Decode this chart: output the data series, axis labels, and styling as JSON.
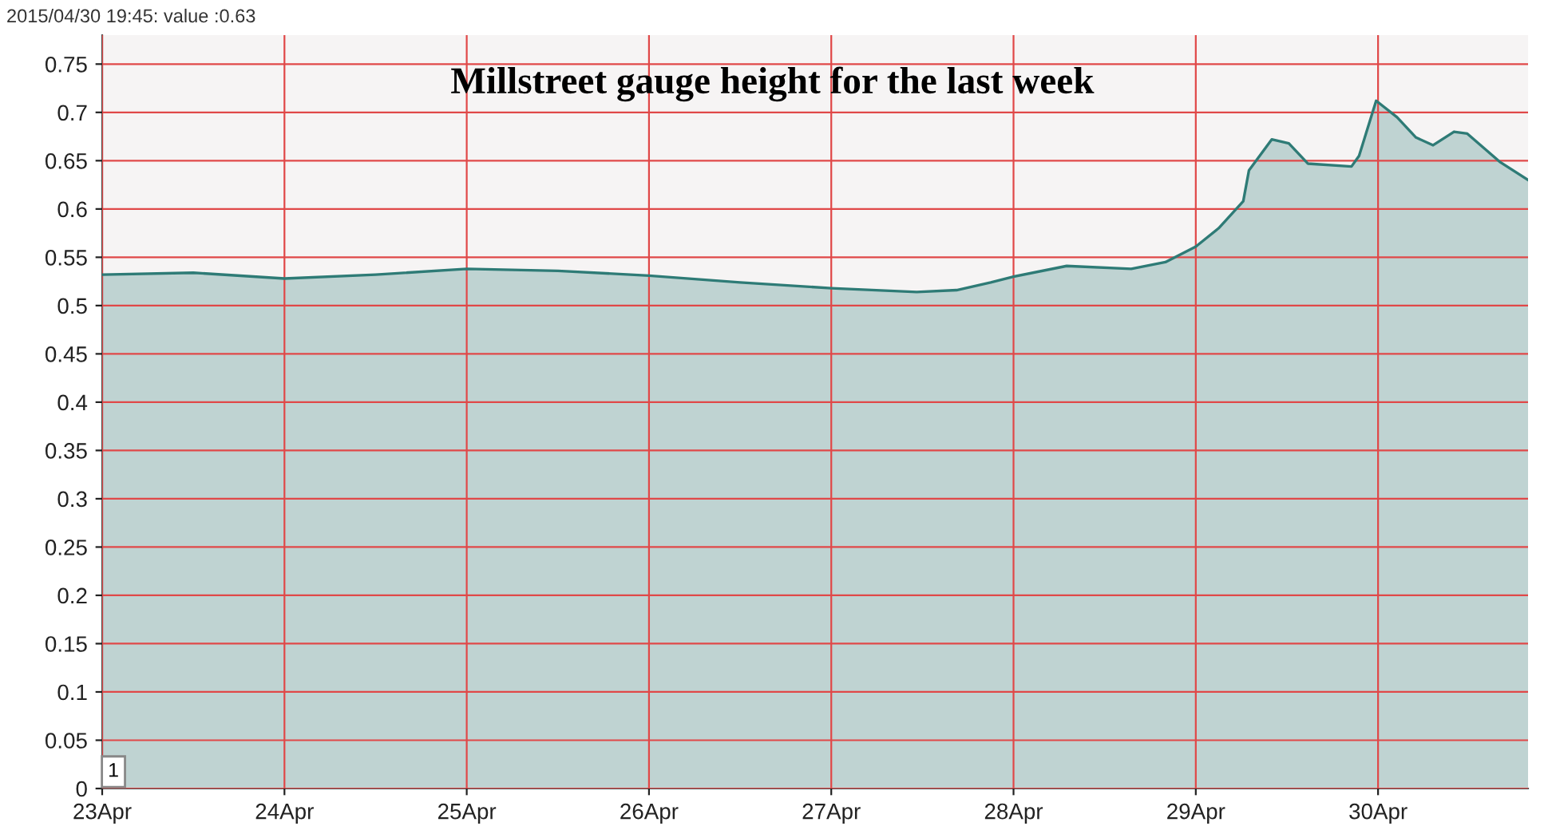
{
  "chart_data": {
    "type": "area",
    "title": "Millstreet gauge height for the last week",
    "x": [
      "2015-04-23T00:00",
      "2015-04-23T12:00",
      "2015-04-24T00:00",
      "2015-04-24T12:00",
      "2015-04-25T00:00",
      "2015-04-25T12:00",
      "2015-04-26T00:00",
      "2015-04-26T12:00",
      "2015-04-27T00:00",
      "2015-04-27T11:15",
      "2015-04-27T16:30",
      "2015-04-27T21:00",
      "2015-04-28T00:00",
      "2015-04-28T07:00",
      "2015-04-28T15:30",
      "2015-04-28T20:00",
      "2015-04-29T00:00",
      "2015-04-29T03:00",
      "2015-04-29T06:15",
      "2015-04-29T07:00",
      "2015-04-29T10:00",
      "2015-04-29T12:15",
      "2015-04-29T14:45",
      "2015-04-29T20:30",
      "2015-04-29T21:30",
      "2015-04-29T22:15",
      "2015-04-29T23:45",
      "2015-04-30T02:30",
      "2015-04-30T05:00",
      "2015-04-30T07:15",
      "2015-04-30T10:00",
      "2015-04-30T11:45",
      "2015-04-30T16:00",
      "2015-04-30T19:45"
    ],
    "series": [
      {
        "color": "#2e7b76",
        "values": [
          0.532,
          0.534,
          0.528,
          0.532,
          0.538,
          0.536,
          0.531,
          0.524,
          0.518,
          0.514,
          0.516,
          0.524,
          0.53,
          0.541,
          0.538,
          0.545,
          0.561,
          0.58,
          0.608,
          0.64,
          0.672,
          0.668,
          0.647,
          0.644,
          0.655,
          0.674,
          0.712,
          0.695,
          0.674,
          0.666,
          0.68,
          0.678,
          0.649,
          0.63
        ]
      }
    ],
    "xlim": [
      "2015-04-23T00:00",
      "2015-04-30T19:45"
    ],
    "xticks": [
      {
        "value": "2015-04-23",
        "label": "23Apr"
      },
      {
        "value": "2015-04-24",
        "label": "24Apr"
      },
      {
        "value": "2015-04-25",
        "label": "25Apr"
      },
      {
        "value": "2015-04-26",
        "label": "26Apr"
      },
      {
        "value": "2015-04-27",
        "label": "27Apr"
      },
      {
        "value": "2015-04-28",
        "label": "28Apr"
      },
      {
        "value": "2015-04-29",
        "label": "29Apr"
      },
      {
        "value": "2015-04-30",
        "label": "30Apr"
      }
    ],
    "ylim": [
      0,
      0.78
    ],
    "yticks": [
      0,
      0.05,
      0.1,
      0.15,
      0.2,
      0.25,
      0.3,
      0.35,
      0.4,
      0.45,
      0.5,
      0.55,
      0.6,
      0.65,
      0.7,
      0.75
    ],
    "grid": true,
    "annotations": [
      "2015/04/30 19:45: value :0.63",
      "1"
    ]
  }
}
